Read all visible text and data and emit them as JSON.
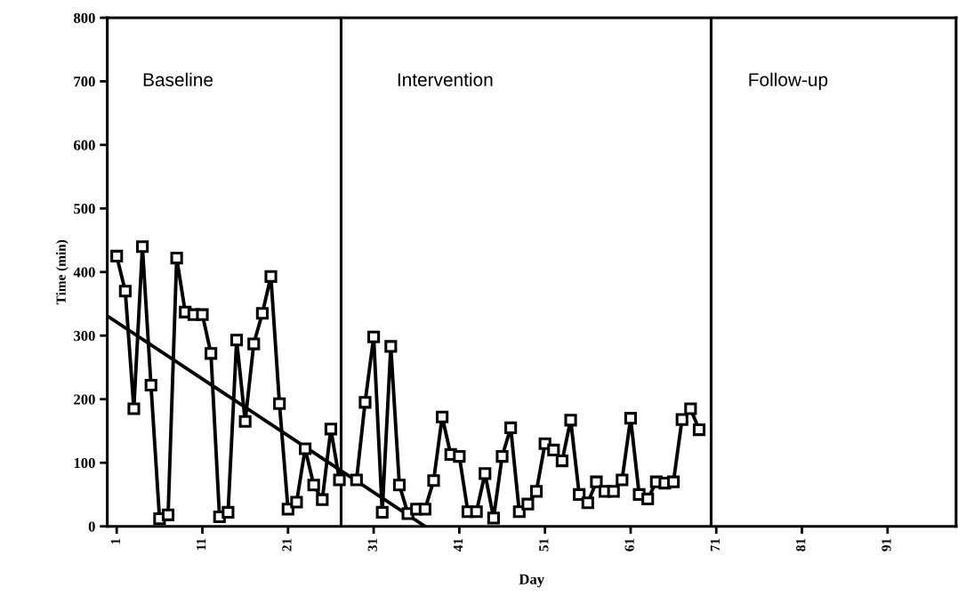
{
  "chart_data": {
    "type": "line",
    "xlabel": "Day",
    "ylabel": "Time (min)",
    "xlim": [
      -0.1,
      99
    ],
    "ylim": [
      0,
      800
    ],
    "xticks": [
      1,
      11,
      21,
      31,
      41,
      51,
      61,
      71,
      81,
      91
    ],
    "yticks": [
      0,
      100,
      200,
      300,
      400,
      500,
      600,
      700,
      800
    ],
    "grid": false,
    "marker": "square",
    "line_style": "solid",
    "series": [
      {
        "color": "#000000",
        "x": [
          1,
          2,
          3,
          4,
          5,
          6,
          7,
          8,
          9,
          10,
          11,
          12,
          13,
          14,
          15,
          16,
          17,
          18,
          19,
          20,
          21,
          22,
          23,
          24,
          25,
          26,
          27
        ],
        "values": [
          425,
          370,
          185,
          440,
          222,
          12,
          18,
          422,
          337,
          333,
          333,
          272,
          15,
          22,
          293,
          165,
          287,
          335,
          393,
          193,
          27,
          38,
          122,
          65,
          42,
          153,
          73
        ]
      },
      {
        "color": "#000000",
        "x": [
          29,
          30,
          31,
          32,
          33,
          34,
          35,
          36,
          37,
          38,
          39,
          40,
          41,
          42,
          43,
          44,
          45,
          46,
          47,
          48,
          49,
          50,
          51,
          52,
          53,
          54,
          55,
          56,
          57,
          58,
          59,
          60,
          61,
          62,
          63,
          64,
          65,
          66,
          67,
          68,
          69
        ],
        "values": [
          73,
          195,
          298,
          22,
          283,
          65,
          20,
          27,
          27,
          72,
          172,
          113,
          110,
          23,
          23,
          83,
          13,
          110,
          155,
          23,
          35,
          55,
          130,
          120,
          103,
          167,
          50,
          37,
          70,
          55,
          55,
          73,
          170,
          50,
          43,
          70,
          68,
          70,
          168,
          185,
          152
        ]
      },
      {
        "color": "#000000",
        "marker": "none",
        "x": [
          0,
          37
        ],
        "values": [
          330,
          0
        ]
      }
    ],
    "ref_lines": [
      {
        "axis": "x",
        "value": 27.2,
        "color": "#000000",
        "line_style": "solid"
      },
      {
        "axis": "x",
        "value": 70.4,
        "color": "#000000",
        "line_style": "solid"
      }
    ],
    "annotations": [
      "Baseline",
      "Intervention",
      "Follow-up"
    ]
  }
}
